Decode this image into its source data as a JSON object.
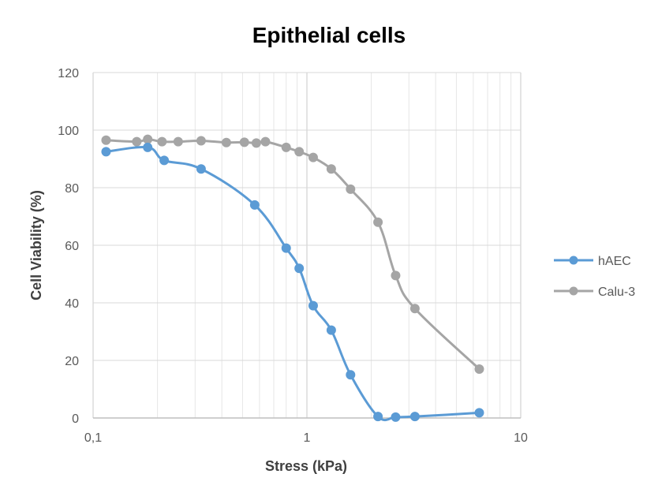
{
  "chart_data": {
    "type": "line",
    "title": "Epithelial cells",
    "xlabel": "Stress (kPa)",
    "ylabel": "Cell Viability (%)",
    "x_scale": "log",
    "xlim": [
      0.1,
      10
    ],
    "ylim": [
      0,
      120
    ],
    "x_ticks": [
      0.1,
      1,
      10
    ],
    "x_tick_labels": [
      "0,1",
      "1",
      "10"
    ],
    "y_ticks": [
      0,
      20,
      40,
      60,
      80,
      100,
      120
    ],
    "y_tick_labels": [
      "0",
      "20",
      "40",
      "60",
      "80",
      "100",
      "120"
    ],
    "grid": true,
    "legend_position": "right",
    "smooth": true,
    "series": [
      {
        "name": "hAEC",
        "color": "#5b9bd5",
        "x": [
          0.115,
          0.18,
          0.215,
          0.32,
          0.57,
          0.8,
          0.92,
          1.07,
          1.3,
          1.6,
          2.15,
          2.6,
          3.2,
          6.4
        ],
        "y": [
          92.5,
          94,
          89.5,
          86.5,
          74,
          59,
          52,
          39,
          30.5,
          15,
          0.5,
          0.3,
          0.5,
          1.8
        ]
      },
      {
        "name": "Calu-3",
        "color": "#a5a5a5",
        "x": [
          0.115,
          0.16,
          0.18,
          0.21,
          0.25,
          0.32,
          0.42,
          0.51,
          0.58,
          0.64,
          0.8,
          0.92,
          1.07,
          1.3,
          1.6,
          2.15,
          2.6,
          3.2,
          6.4
        ],
        "y": [
          96.5,
          96,
          96.8,
          96,
          96,
          96.3,
          95.7,
          95.8,
          95.5,
          96,
          94,
          92.5,
          90.5,
          86.5,
          79.5,
          68,
          49.5,
          38,
          17
        ]
      }
    ]
  }
}
